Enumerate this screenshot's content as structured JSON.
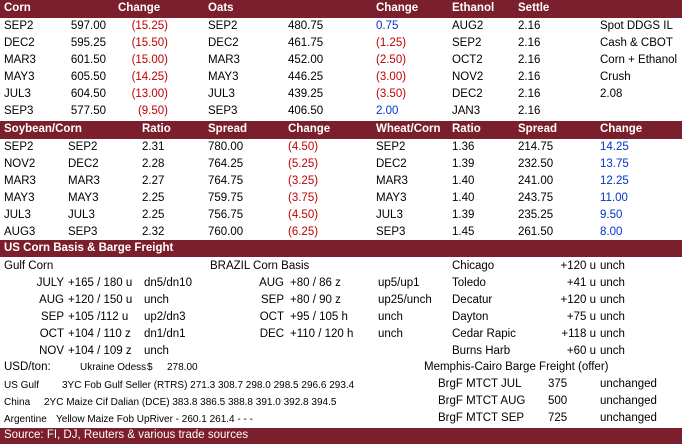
{
  "sec1": {
    "headers": {
      "corn": "Corn",
      "corn_change": "Change",
      "oats": "Oats",
      "oats_change": "Change",
      "ethanol": "Ethanol",
      "settle": "Settle"
    },
    "rows": [
      {
        "corn_month": "SEP2",
        "corn_price": "597.00",
        "corn_change": "(15.25)",
        "oats_month": "SEP2",
        "oats_price": "480.75",
        "oats_change": "0.75",
        "eth_month": "AUG2",
        "eth_settle": "2.16",
        "note": "Spot DDGS IL",
        "note_val": ""
      },
      {
        "corn_month": "DEC2",
        "corn_price": "595.25",
        "corn_change": "(15.50)",
        "oats_month": "DEC2",
        "oats_price": "461.75",
        "oats_change": "(1.25)",
        "eth_month": "SEP2",
        "eth_settle": "2.16",
        "note": "Cash & CBOT",
        "note_val": ""
      },
      {
        "corn_month": "MAR3",
        "corn_price": "601.50",
        "corn_change": "(15.00)",
        "oats_month": "MAR3",
        "oats_price": "452.00",
        "oats_change": "(2.50)",
        "eth_month": "OCT2",
        "eth_settle": "2.16",
        "note": "Corn + Ethanol",
        "note_val": ""
      },
      {
        "corn_month": "MAY3",
        "corn_price": "605.50",
        "corn_change": "(14.25)",
        "oats_month": "MAY3",
        "oats_price": "446.25",
        "oats_change": "(3.00)",
        "eth_month": "NOV2",
        "eth_settle": "2.16",
        "note": "Crush",
        "note_val": ""
      },
      {
        "corn_month": "JUL3",
        "corn_price": "604.50",
        "corn_change": "(13.00)",
        "oats_month": "JUL3",
        "oats_price": "439.25",
        "oats_change": "(3.50)",
        "eth_month": "DEC2",
        "eth_settle": "2.16",
        "note": "",
        "note_val": "2.08"
      },
      {
        "corn_month": "SEP3",
        "corn_price": "577.50",
        "corn_change": "(9.50)",
        "oats_month": "SEP3",
        "oats_price": "406.50",
        "oats_change": "2.00",
        "eth_month": "JAN3",
        "eth_settle": "2.16",
        "note": "",
        "note_val": ""
      }
    ]
  },
  "sec2": {
    "headers": {
      "soy_corn": "Soybean/Corn",
      "ratio": "Ratio",
      "spread": "Spread",
      "change": "Change",
      "wheat_corn": "Wheat/Corn",
      "ratio2": "Ratio",
      "spread2": "Spread",
      "change2": "Change"
    },
    "rows": [
      {
        "a": "SEP2",
        "b": "SEP2",
        "ratio": "2.31",
        "spread": "780.00",
        "change": "(4.50)",
        "w": "SEP2",
        "w_ratio": "1.36",
        "w_spread": "214.75",
        "w_change": "14.25"
      },
      {
        "a": "NOV2",
        "b": "DEC2",
        "ratio": "2.28",
        "spread": "764.25",
        "change": "(5.25)",
        "w": "DEC2",
        "w_ratio": "1.39",
        "w_spread": "232.50",
        "w_change": "13.75"
      },
      {
        "a": "MAR3",
        "b": "MAR3",
        "ratio": "2.27",
        "spread": "764.75",
        "change": "(3.25)",
        "w": "MAR3",
        "w_ratio": "1.40",
        "w_spread": "241.00",
        "w_change": "12.25"
      },
      {
        "a": "MAY3",
        "b": "MAY3",
        "ratio": "2.25",
        "spread": "759.75",
        "change": "(3.75)",
        "w": "MAY3",
        "w_ratio": "1.40",
        "w_spread": "243.75",
        "w_change": "11.00"
      },
      {
        "a": "JUL3",
        "b": "JUL3",
        "ratio": "2.25",
        "spread": "756.75",
        "change": "(4.50)",
        "w": "JUL3",
        "w_ratio": "1.39",
        "w_spread": "235.25",
        "w_change": "9.50"
      },
      {
        "a": "AUG3",
        "b": "SEP3",
        "ratio": "2.32",
        "spread": "760.00",
        "change": "(6.25)",
        "w": "SEP3",
        "w_ratio": "1.45",
        "w_spread": "261.50",
        "w_change": "8.00"
      }
    ]
  },
  "sec3": {
    "title": "US Corn Basis & Barge Freight",
    "gulf_title": "Gulf Corn",
    "brazil_title": "BRAZIL Corn Basis",
    "gulf_rows": [
      {
        "m": "JULY",
        "v": "+165 / 180 u",
        "c": "dn5/dn10"
      },
      {
        "m": "AUG",
        "v": "+120 / 150 u",
        "c": "unch"
      },
      {
        "m": "SEP",
        "v": "+105 /112 u",
        "c": "up2/dn3"
      },
      {
        "m": "OCT",
        "v": "+104 / 110 z",
        "c": "dn1/dn1"
      },
      {
        "m": "NOV",
        "v": "+104 / 109 z",
        "c": "unch"
      }
    ],
    "brazil_rows": [
      {
        "m": "AUG",
        "v": "+80 / 86 z",
        "c": "up5/up1"
      },
      {
        "m": "SEP",
        "v": "+80 / 90 z",
        "c": "up25/unch"
      },
      {
        "m": "OCT",
        "v": "+95 / 105 h",
        "c": "unch"
      },
      {
        "m": "DEC",
        "v": "+110 / 120 h",
        "c": "unch"
      }
    ],
    "cities": [
      {
        "n": "Chicago",
        "v": "+120 u",
        "c": "unch"
      },
      {
        "n": "Toledo",
        "v": "+41 u",
        "c": "unch"
      },
      {
        "n": "Decatur",
        "v": "+120 u",
        "c": "unch"
      },
      {
        "n": "Dayton",
        "v": "+75 u",
        "c": "unch"
      },
      {
        "n": "Cedar Rapic",
        "v": "+118 u",
        "c": "unch"
      },
      {
        "n": "Burns Harb",
        "v": "+60 u",
        "c": "unch"
      }
    ]
  },
  "sec4": {
    "usd_label": "USD/ton:",
    "ukraine_label": "Ukraine Odess",
    "ukraine_cur": "$",
    "ukraine_val": "278.00",
    "us_gulf_label": "US Gulf",
    "us_gulf_text": "3YC Fob Gulf Seller (RTRS) 271.3 308.7 298.0 298.5 296.6 293.4",
    "china_label": "China",
    "china_text": "2YC Maize Cif Dalian (DCE) 383.8 386.5 388.8 391.0 392.8 394.5",
    "arg_label": "Argentine",
    "arg_text": "Yellow Maize Fob UpRiver   -   260.1 261.4   -     -     -",
    "memphis_title": "Memphis-Cairo Barge Freight (offer)",
    "barge": [
      {
        "n": "BrgF MTCT JUL",
        "v": "375",
        "c": "unchanged"
      },
      {
        "n": "BrgF MTCT AUG",
        "v": "500",
        "c": "unchanged"
      },
      {
        "n": "BrgF MTCT SEP",
        "v": "725",
        "c": "unchanged"
      }
    ],
    "source": "Source: FI, DJ, Reuters & various trade sources"
  },
  "colors": {
    "band": "#7a1f2b",
    "negative": "#c00000",
    "positive": "#0033cc"
  }
}
